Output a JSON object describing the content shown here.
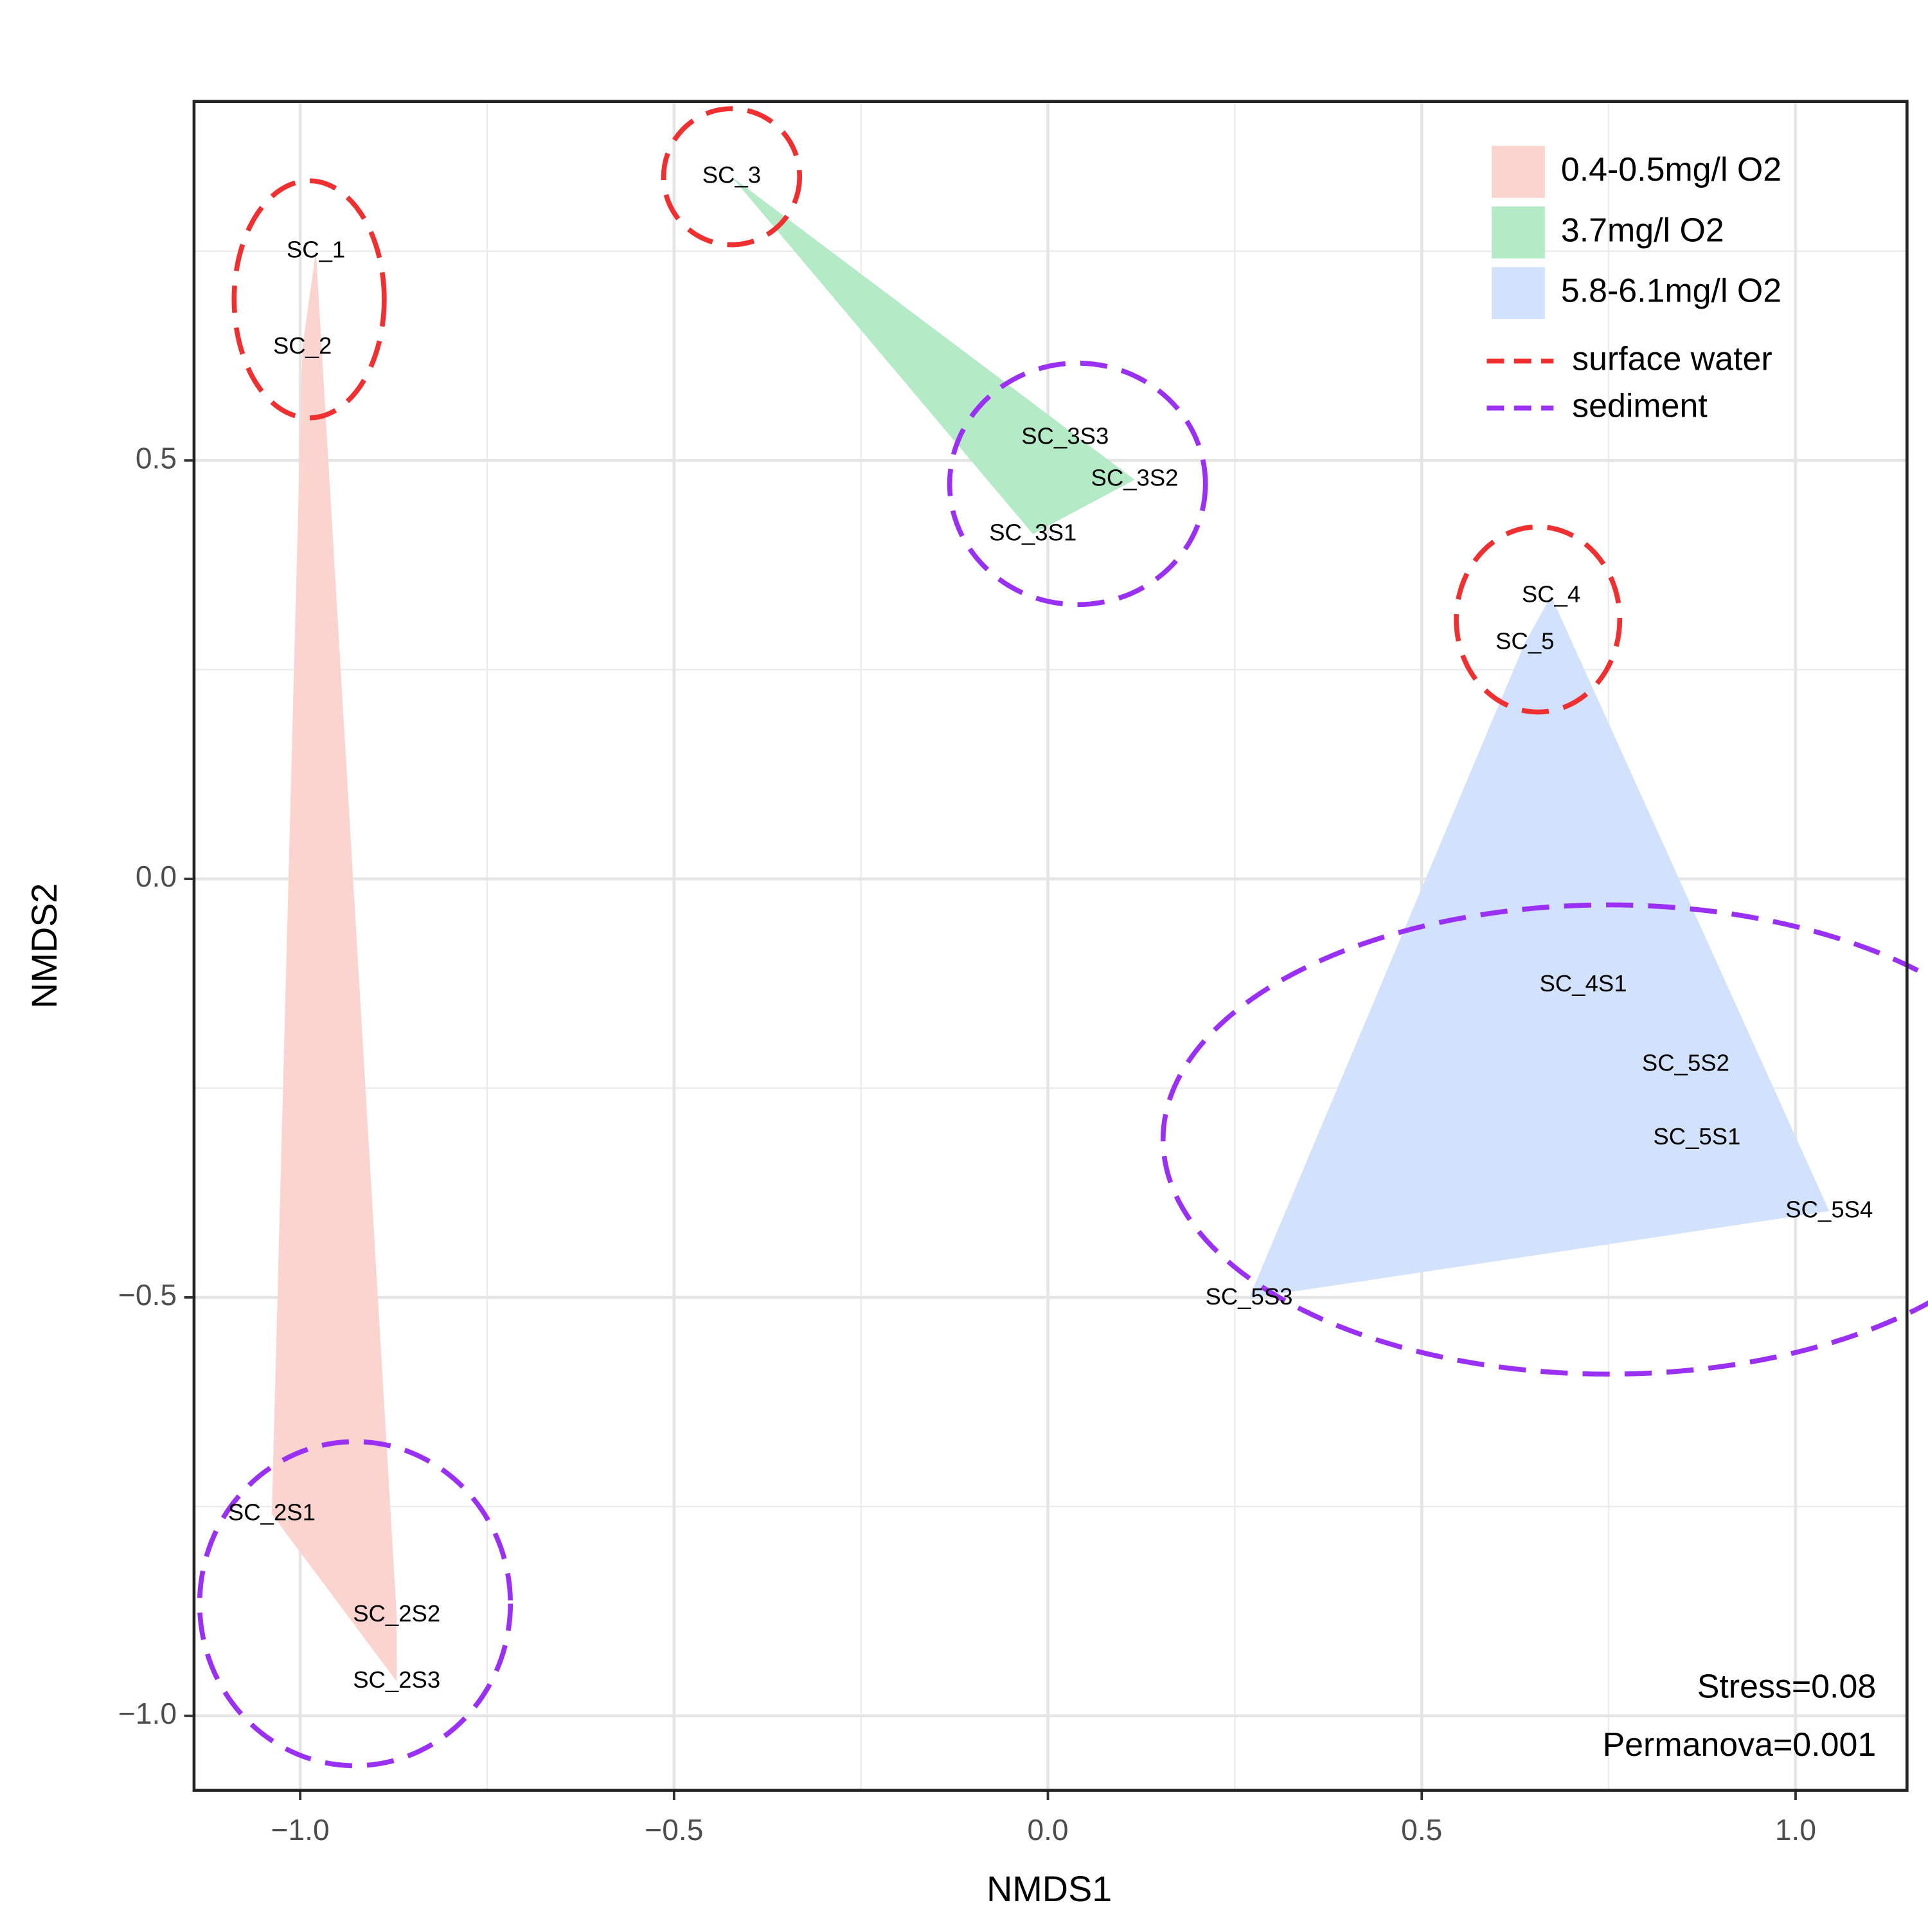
{
  "chart_data": {
    "type": "nmds",
    "xlabel": "NMDS1",
    "ylabel": "NMDS2",
    "xlim": [
      -1.142,
      1.149
    ],
    "ylim": [
      -1.089,
      0.929
    ],
    "xticks": [
      {
        "value": -1.0,
        "label": "−1.0"
      },
      {
        "value": -0.5,
        "label": "−0.5"
      },
      {
        "value": 0,
        "label": "0.0"
      },
      0.5,
      {
        "value": 1.0,
        "label": "1.0"
      }
    ],
    "yticks": [
      {
        "value": -1.0,
        "label": "−1.0"
      },
      {
        "value": -0.5,
        "label": "−0.5"
      },
      {
        "value": 0,
        "label": "0.0"
      },
      0.5
    ],
    "xminorticks": [
      -0.75,
      -0.25,
      0.25,
      0.75
    ],
    "yminorticks": [
      -0.75,
      -0.25,
      0.25,
      0.75
    ],
    "grid": true,
    "series": [
      {
        "name": "0.4-0.5mg/l O2",
        "color": "#fbd3cf",
        "labels": [
          "SC_1",
          "SC_2",
          "SC_2S1",
          "SC_2S2",
          "SC_2S3"
        ],
        "x": [
          -0.979,
          -0.997,
          -1.038,
          -0.871,
          -0.871
        ],
        "y": [
          0.75,
          0.635,
          -0.759,
          -0.88,
          -0.959
        ],
        "habitat": [
          0,
          0,
          1,
          1,
          1
        ]
      },
      {
        "name": "3.7mg/l O2",
        "color": "#b4ebc6",
        "labels": [
          "SC_3",
          "SC_3S3",
          "SC_3S2",
          "SC_3S1"
        ],
        "x": [
          -0.423,
          0.023,
          0.116,
          -0.02
        ],
        "y": [
          0.839,
          0.527,
          0.477,
          0.412
        ],
        "habitat": [
          0,
          1,
          1,
          1
        ]
      },
      {
        "name": "5.8-6.1mg/l O2",
        "color": "#d2e1fc",
        "labels": [
          "SC_4",
          "SC_5",
          "SC_4S1",
          "SC_5S2",
          "SC_5S1",
          "SC_5S4",
          "SC_5S3"
        ],
        "x": [
          0.673,
          0.638,
          0.716,
          0.853,
          0.868,
          1.045,
          0.269
        ],
        "y": [
          0.338,
          0.282,
          -0.127,
          -0.222,
          -0.31,
          -0.397,
          -0.501
        ],
        "habitat": [
          0,
          0,
          1,
          1,
          1,
          1,
          1
        ]
      }
    ],
    "habitats": [
      {
        "name": "surface water",
        "color": "#f03030"
      },
      {
        "name": "sediment",
        "color": "#9b30f5"
      }
    ],
    "annotations": [
      "Stress=0.08",
      "Permanova=0.001"
    ]
  }
}
